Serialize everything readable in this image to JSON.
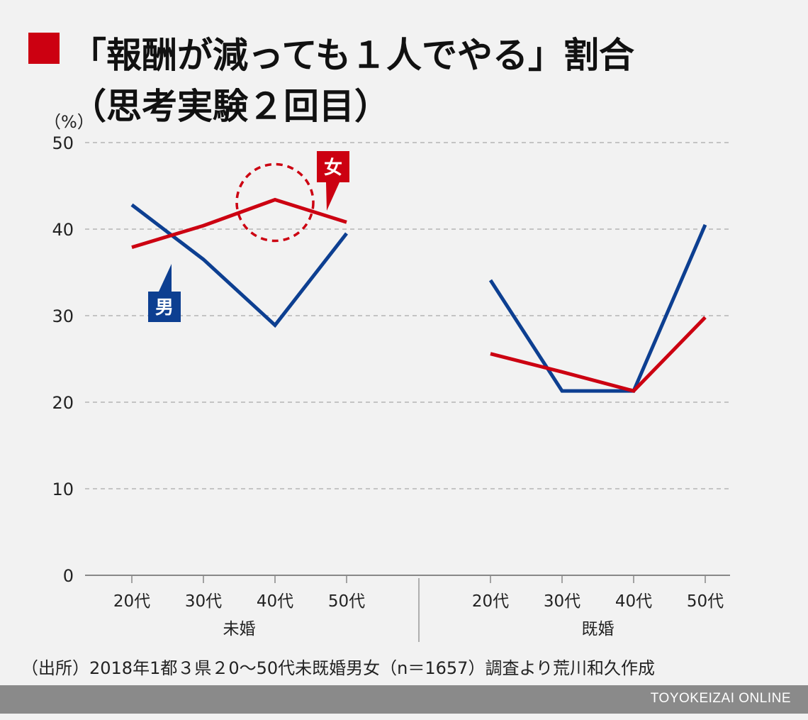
{
  "title": {
    "line1": "「報酬が減っても１人でやる」割合",
    "line2": "（思考実験２回目）"
  },
  "colors": {
    "accent": "#cc0011",
    "male": "#0d3f91",
    "female": "#cc0011"
  },
  "chart_data": {
    "type": "line",
    "yunit": "（%）",
    "ylim": [
      0,
      50
    ],
    "yticks": [
      "0",
      "10",
      "20",
      "30",
      "40",
      "50"
    ],
    "grid": true,
    "groups": [
      {
        "name": "未婚",
        "categories": [
          "20代",
          "30代",
          "40代",
          "50代"
        ],
        "series": [
          {
            "name": "男",
            "values": [
              42.8,
              36.5,
              28.9,
              39.5
            ]
          },
          {
            "name": "女",
            "values": [
              37.9,
              40.4,
              43.4,
              40.8
            ]
          }
        ]
      },
      {
        "name": "既婚",
        "categories": [
          "20代",
          "30代",
          "40代",
          "50代"
        ],
        "series": [
          {
            "name": "男",
            "values": [
              34.1,
              21.3,
              21.3,
              40.5
            ]
          },
          {
            "name": "女",
            "values": [
              25.6,
              23.5,
              21.3,
              29.8
            ]
          }
        ]
      }
    ],
    "annotations": [
      "女",
      "男"
    ]
  },
  "source": "（出所）2018年1都３県２0～50代未既婚男女（n＝1657）調査より荒川和久作成",
  "brand": "TOYOKEIZAI ONLINE"
}
